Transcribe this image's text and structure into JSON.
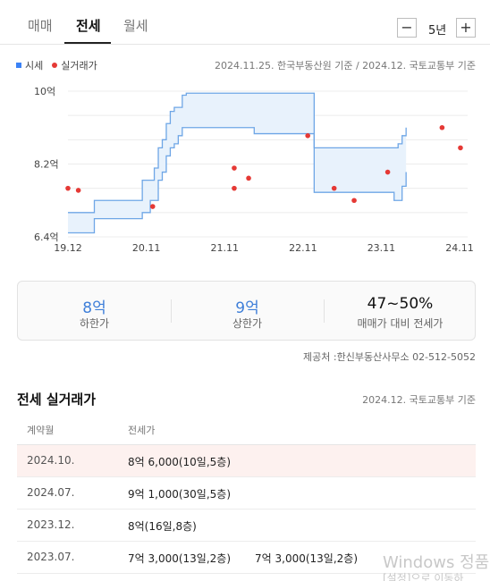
{
  "tabs": [
    {
      "label": "매매",
      "active": false
    },
    {
      "label": "전세",
      "active": true
    },
    {
      "label": "월세",
      "active": false
    }
  ],
  "period": {
    "minus": "−",
    "value": "5년",
    "plus": "+"
  },
  "legend": {
    "market": "시세",
    "actual": "실거래가"
  },
  "source_top": "2024.11.25. 한국부동산원 기준 / 2024.12. 국토교통부 기준",
  "colors": {
    "band_line": "#6ea6e6",
    "band_fill": "#e8f2fc",
    "point": "#e53935",
    "highlight_row": "#fdf1ef"
  },
  "chart_data": {
    "type": "line",
    "x_tick_labels": [
      "19.12",
      "20.11",
      "21.11",
      "22.11",
      "23.11",
      "24.11"
    ],
    "y_tick_labels": [
      "10억",
      "8.2억",
      "6.4억"
    ],
    "ylim": [
      6.4,
      10
    ],
    "grid": true,
    "series": [
      {
        "name": "시세",
        "kind": "band",
        "x": [
          2019.92,
          2020.25,
          2020.75,
          2020.85,
          2020.95,
          2021.0,
          2021.05,
          2021.1,
          2021.15,
          2021.2,
          2021.25,
          2021.3,
          2021.35,
          2021.4,
          2022.25,
          2022.4,
          2022.5,
          2022.62,
          2022.75,
          2023.0,
          2023.5,
          2023.92,
          2024.0,
          2024.05,
          2024.1,
          2024.15
        ],
        "upper": [
          7.0,
          7.3,
          7.3,
          7.8,
          7.8,
          8.1,
          8.6,
          8.8,
          9.2,
          9.5,
          9.6,
          9.6,
          9.9,
          9.95,
          9.95,
          9.95,
          9.95,
          9.95,
          9.95,
          8.6,
          8.6,
          8.6,
          8.6,
          8.7,
          8.9,
          9.1
        ],
        "lower": [
          6.5,
          6.85,
          6.85,
          7.0,
          7.3,
          7.3,
          7.8,
          8.0,
          8.4,
          8.6,
          8.7,
          8.9,
          9.1,
          9.1,
          8.95,
          8.95,
          8.95,
          8.95,
          8.95,
          7.5,
          7.5,
          7.5,
          7.3,
          7.3,
          7.65,
          8.0
        ]
      },
      {
        "name": "실거래가",
        "kind": "scatter",
        "points": [
          {
            "x": 2019.92,
            "y": 7.6
          },
          {
            "x": 2020.05,
            "y": 7.55
          },
          {
            "x": 2020.98,
            "y": 7.15
          },
          {
            "x": 2022.0,
            "y": 8.1
          },
          {
            "x": 2022.0,
            "y": 7.6
          },
          {
            "x": 2022.18,
            "y": 7.85
          },
          {
            "x": 2022.92,
            "y": 8.9
          },
          {
            "x": 2023.25,
            "y": 7.6
          },
          {
            "x": 2023.5,
            "y": 7.3
          },
          {
            "x": 2023.92,
            "y": 8.0
          },
          {
            "x": 2024.6,
            "y": 9.1
          },
          {
            "x": 2024.83,
            "y": 8.6
          }
        ]
      }
    ]
  },
  "summary": [
    {
      "value": "8억",
      "label": "하한가",
      "accent": true
    },
    {
      "value": "9억",
      "label": "상한가",
      "accent": true
    },
    {
      "value": "47~50%",
      "label": "매매가 대비 전세가",
      "accent": false
    }
  ],
  "provider": "제공처 :한신부동산사무소 02-512-5052",
  "section": {
    "title": "전세 실거래가",
    "source": "2024.12. 국토교통부 기준"
  },
  "table": {
    "headers": [
      "계약월",
      "전세가"
    ],
    "rows": [
      {
        "month": "2024.10.",
        "prices": [
          "8억 6,000(10일,5층)"
        ],
        "highlight": true
      },
      {
        "month": "2024.07.",
        "prices": [
          "9억 1,000(30일,5층)"
        ],
        "highlight": false
      },
      {
        "month": "2023.12.",
        "prices": [
          "8억(16일,8층)"
        ],
        "highlight": false
      },
      {
        "month": "2023.07.",
        "prices": [
          "7억 3,000(13일,2층)",
          "7억 3,000(13일,2층)"
        ],
        "highlight": false
      }
    ]
  },
  "watermark": {
    "line1": "Windows 정품",
    "line2": "[설정]으로 이동하"
  }
}
